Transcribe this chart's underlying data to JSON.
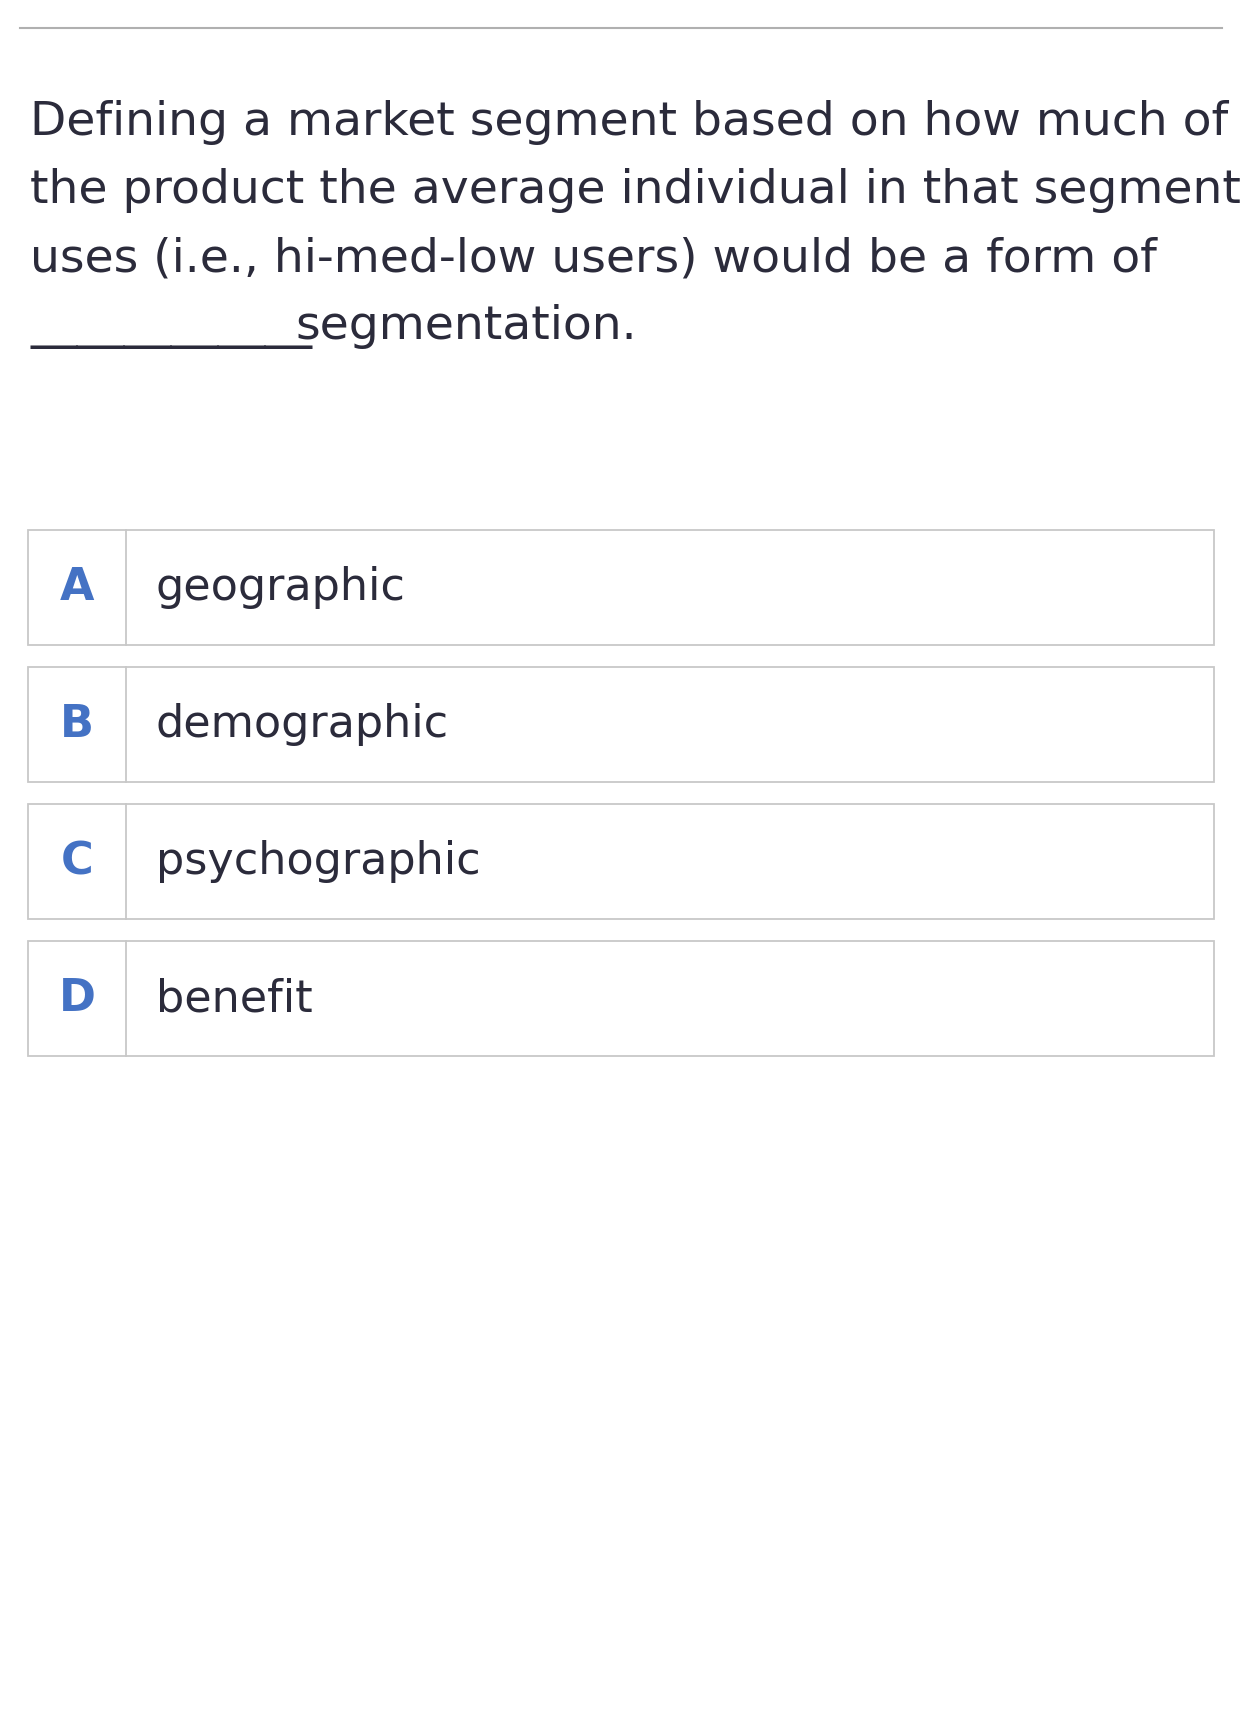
{
  "question_lines": [
    "Defining a market segment based on how much of",
    "the product the average individual in that segment",
    "uses (i.e., hi-med-low users) would be a form of",
    "                        segmentation."
  ],
  "underline_text": "———————————— segmentation.",
  "options": [
    {
      "label": "A",
      "text": "geographic"
    },
    {
      "label": "B",
      "text": "demographic"
    },
    {
      "label": "C",
      "text": "psychographic"
    },
    {
      "label": "D",
      "text": "benefit"
    }
  ],
  "bg_color": "#ffffff",
  "text_color": "#2b2b3b",
  "label_color": "#4472c4",
  "border_color": "#c8c8c8",
  "top_border_color": "#b0b0b0",
  "question_fontsize": 34,
  "option_label_fontsize": 32,
  "option_text_fontsize": 32
}
